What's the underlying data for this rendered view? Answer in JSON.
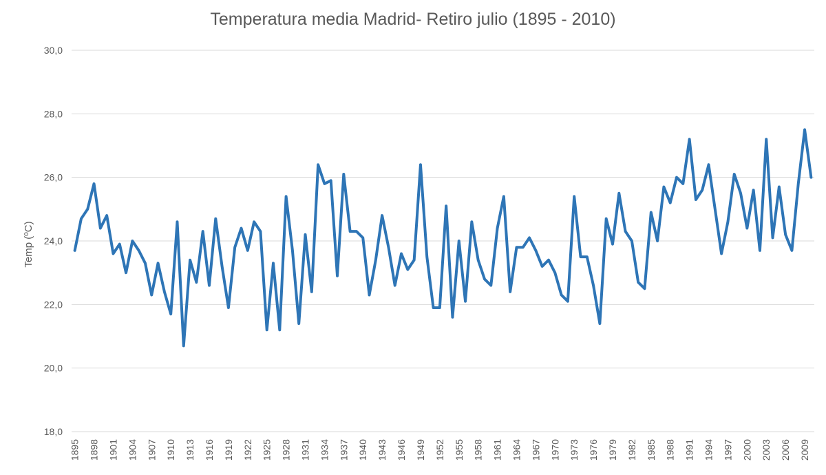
{
  "chart_data": {
    "type": "line",
    "title": "Temperatura media Madrid- Retiro julio (1895 - 2010)",
    "xlabel": "",
    "ylabel": "Temp (ºC)",
    "ylim": [
      18,
      30
    ],
    "y_ticks": [
      "18,0",
      "20,0",
      "22,0",
      "24,0",
      "26,0",
      "28,0",
      "30,0"
    ],
    "y_tick_values": [
      18,
      20,
      22,
      24,
      26,
      28,
      30
    ],
    "x_tick_labels": [
      "1895",
      "1898",
      "1901",
      "1904",
      "1907",
      "1910",
      "1913",
      "1916",
      "1919",
      "1922",
      "1925",
      "1928",
      "1931",
      "1934",
      "1937",
      "1940",
      "1943",
      "1946",
      "1949",
      "1952",
      "1955",
      "1958",
      "1961",
      "1964",
      "1967",
      "1970",
      "1973",
      "1976",
      "1979",
      "1982",
      "1985",
      "1988",
      "1991",
      "1994",
      "1997",
      "2000",
      "2003",
      "2006",
      "2009"
    ],
    "grid": "horizontal",
    "legend": "none",
    "line_color": "#2e75b6",
    "grid_color": "#d9d9d9",
    "x": [
      1895,
      1896,
      1897,
      1898,
      1899,
      1900,
      1901,
      1902,
      1903,
      1904,
      1905,
      1906,
      1907,
      1908,
      1909,
      1910,
      1911,
      1912,
      1913,
      1914,
      1915,
      1916,
      1917,
      1918,
      1919,
      1920,
      1921,
      1922,
      1923,
      1924,
      1925,
      1926,
      1927,
      1928,
      1929,
      1930,
      1931,
      1932,
      1933,
      1934,
      1935,
      1936,
      1937,
      1938,
      1939,
      1940,
      1941,
      1942,
      1943,
      1944,
      1945,
      1946,
      1947,
      1948,
      1949,
      1950,
      1951,
      1952,
      1953,
      1954,
      1955,
      1956,
      1957,
      1958,
      1959,
      1960,
      1961,
      1962,
      1963,
      1964,
      1965,
      1966,
      1967,
      1968,
      1969,
      1970,
      1971,
      1972,
      1973,
      1974,
      1975,
      1976,
      1977,
      1978,
      1979,
      1980,
      1981,
      1982,
      1983,
      1984,
      1985,
      1986,
      1987,
      1988,
      1989,
      1990,
      1991,
      1992,
      1993,
      1994,
      1995,
      1996,
      1997,
      1998,
      1999,
      2000,
      2001,
      2002,
      2003,
      2004,
      2005,
      2006,
      2007,
      2008,
      2009,
      2010
    ],
    "series": [
      {
        "values": [
          23.7,
          24.7,
          25.0,
          25.8,
          24.4,
          24.8,
          23.6,
          23.9,
          23.0,
          24.0,
          23.7,
          23.3,
          22.3,
          23.3,
          22.4,
          21.7,
          24.6,
          20.7,
          23.4,
          22.7,
          24.3,
          22.6,
          24.7,
          23.2,
          21.9,
          23.8,
          24.4,
          23.7,
          24.6,
          24.3,
          21.2,
          23.3,
          21.2,
          25.4,
          23.7,
          21.4,
          24.2,
          22.4,
          26.4,
          25.8,
          25.9,
          22.9,
          26.1,
          24.3,
          24.3,
          24.1,
          22.3,
          23.4,
          24.8,
          23.8,
          22.6,
          23.6,
          23.1,
          23.4,
          26.4,
          23.5,
          21.9,
          21.9,
          25.1,
          21.6,
          24.0,
          22.1,
          24.6,
          23.4,
          22.8,
          22.6,
          24.4,
          25.4,
          22.4,
          23.8,
          23.8,
          24.1,
          23.7,
          23.2,
          23.4,
          23.0,
          22.3,
          22.1,
          25.4,
          23.5,
          23.5,
          22.6,
          21.4,
          24.7,
          23.9,
          25.5,
          24.3,
          24.0,
          22.7,
          22.5,
          24.9,
          24.0,
          25.7,
          25.2,
          26.0,
          25.8,
          27.2,
          25.3,
          25.6,
          26.4,
          25.0,
          23.6,
          24.6,
          26.1,
          25.5,
          24.4,
          25.6,
          23.7,
          27.2,
          24.1,
          25.7,
          24.2,
          23.7,
          25.8,
          27.5,
          26.0
        ]
      }
    ]
  }
}
